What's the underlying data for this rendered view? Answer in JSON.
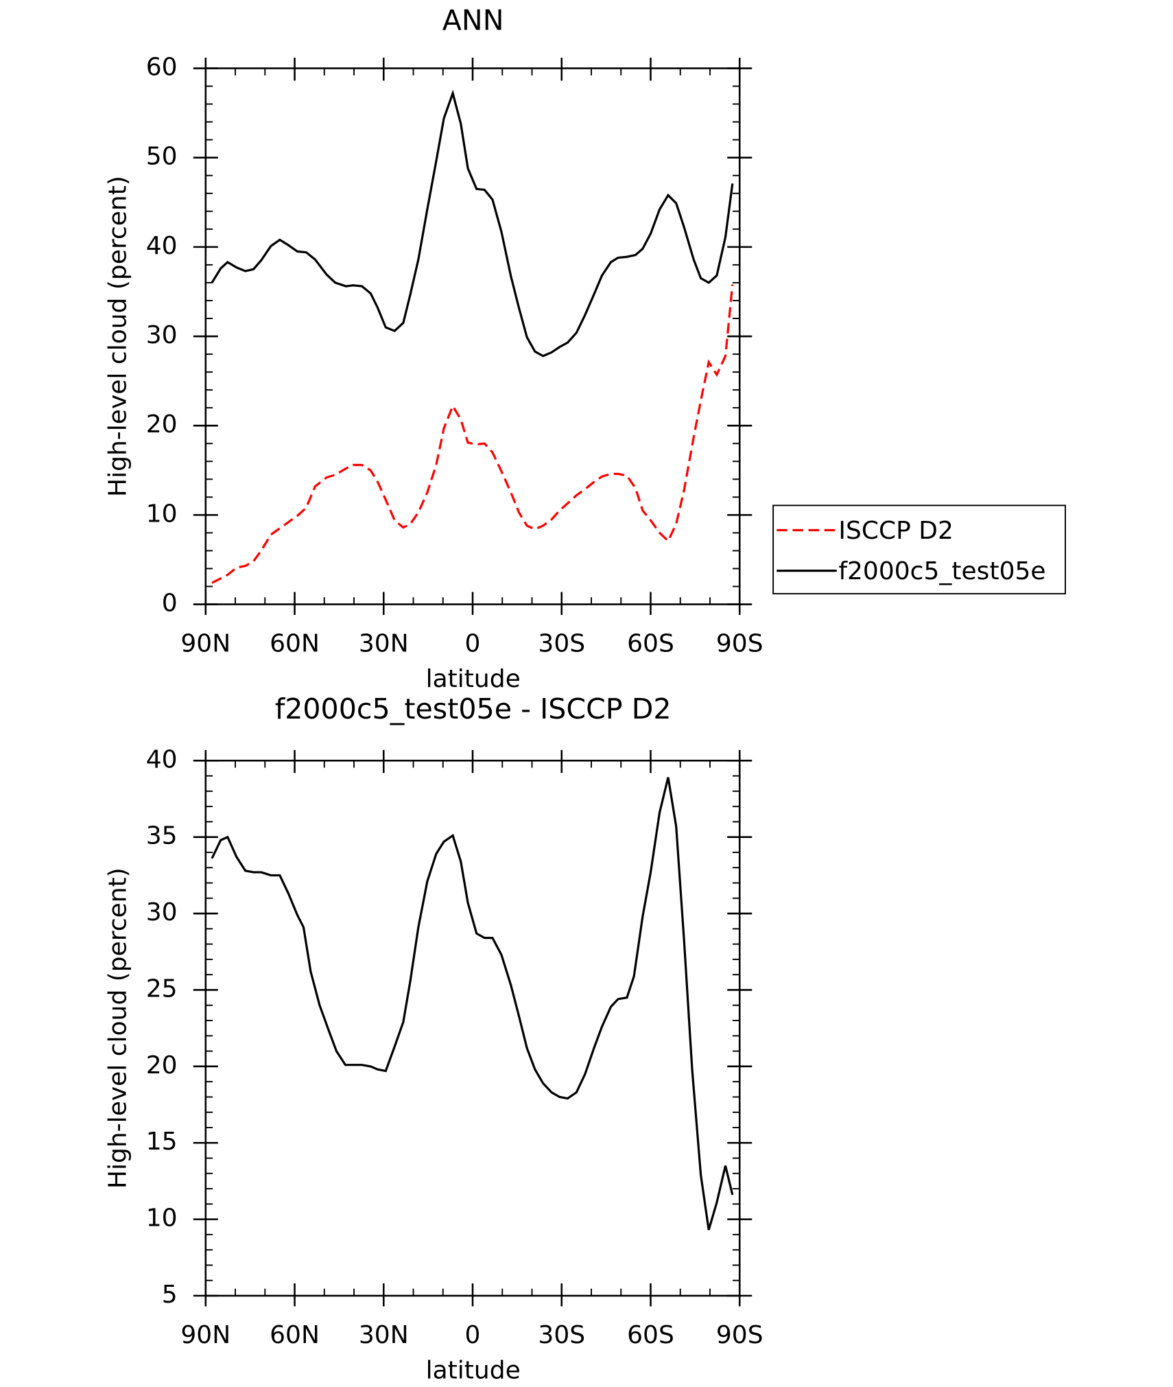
{
  "chart_data": [
    {
      "type": "line",
      "title": "ANN",
      "xlabel": "latitude",
      "ylabel": "High-level cloud (percent)",
      "x": [
        87.9,
        84.9,
        82.6,
        79.6,
        76.6,
        73.9,
        71.3,
        68.0,
        65.0,
        62.1,
        59.1,
        56.1,
        53.1,
        49.2,
        46.3,
        42.7,
        40.3,
        37.3,
        34.4,
        32.0,
        29.3,
        26.3,
        23.4,
        21.0,
        18.3,
        15.3,
        12.3,
        9.7,
        6.7,
        4.0,
        1.6,
        -1.3,
        -4.0,
        -6.7,
        -9.7,
        -12.9,
        -15.6,
        -18.3,
        -21.0,
        -23.7,
        -26.6,
        -29.3,
        -32.0,
        -35.0,
        -37.9,
        -40.9,
        -43.6,
        -46.6,
        -49.0,
        -52.0,
        -54.9,
        -57.3,
        -60.0,
        -63.0,
        -65.9,
        -68.6,
        -71.3,
        -74.5,
        -76.9,
        -79.6,
        -82.3,
        -85.2,
        -87.6
      ],
      "series": [
        {
          "name": "ISCCP D2",
          "color": "#ff0000",
          "linestyle": "dashed",
          "values": [
            2.4,
            2.9,
            3.3,
            4.1,
            4.3,
            4.8,
            6.0,
            7.8,
            8.5,
            9.2,
            9.9,
            10.8,
            13.2,
            14.2,
            14.5,
            15.2,
            15.6,
            15.6,
            15.0,
            13.7,
            11.7,
            9.4,
            8.6,
            9.0,
            10.3,
            12.5,
            15.6,
            19.7,
            22.2,
            20.7,
            18.1,
            17.9,
            18.0,
            17.0,
            14.9,
            12.5,
            10.3,
            8.8,
            8.4,
            8.8,
            9.5,
            10.5,
            11.3,
            12.2,
            12.9,
            13.7,
            14.3,
            14.6,
            14.6,
            14.4,
            13.0,
            10.5,
            9.4,
            8.0,
            7.1,
            9.0,
            12.8,
            18.7,
            22.8,
            27.1,
            25.7,
            27.8,
            35.8
          ]
        },
        {
          "name": "f2000c5_test05e",
          "color": "#000000",
          "linestyle": "solid",
          "values": [
            36.0,
            37.6,
            38.3,
            37.7,
            37.3,
            37.5,
            38.5,
            40.1,
            40.8,
            40.2,
            39.5,
            39.4,
            38.6,
            36.9,
            36.0,
            35.6,
            35.7,
            35.6,
            34.8,
            33.2,
            31.0,
            30.6,
            31.5,
            34.7,
            38.6,
            44.2,
            49.6,
            54.4,
            57.2,
            53.8,
            48.8,
            46.5,
            46.4,
            45.3,
            41.7,
            36.7,
            33.2,
            29.9,
            28.3,
            27.8,
            28.2,
            28.8,
            29.3,
            30.4,
            32.4,
            34.7,
            36.8,
            38.3,
            38.8,
            38.9,
            39.1,
            39.8,
            41.5,
            44.2,
            45.8,
            44.9,
            42.2,
            38.6,
            36.5,
            36.0,
            36.8,
            41.1,
            47.1
          ]
        }
      ],
      "xlim": [
        90,
        -90
      ],
      "xticks": [
        {
          "value": 90,
          "label": "90N"
        },
        {
          "value": 60,
          "label": "60N"
        },
        {
          "value": 30,
          "label": "30N"
        },
        0,
        {
          "value": -30,
          "label": "30S"
        },
        {
          "value": -60,
          "label": "60S"
        },
        {
          "value": -90,
          "label": "90S"
        }
      ],
      "ylim": [
        0,
        60
      ],
      "yticks": [
        0,
        10,
        20,
        30,
        40,
        50,
        60
      ],
      "legend": "right"
    },
    {
      "type": "line",
      "title": "f2000c5_test05e - ISCCP D2",
      "xlabel": "latitude",
      "ylabel": "High-level cloud (percent)",
      "x": [
        87.9,
        84.9,
        82.6,
        79.6,
        76.6,
        73.9,
        71.3,
        68.0,
        65.0,
        62.1,
        59.1,
        57.0,
        54.6,
        51.6,
        48.6,
        45.9,
        42.9,
        40.3,
        37.3,
        34.4,
        32.0,
        29.3,
        26.3,
        23.4,
        21.0,
        18.3,
        15.3,
        12.3,
        9.7,
        6.7,
        4.0,
        1.6,
        -1.3,
        -4.0,
        -6.7,
        -9.7,
        -12.9,
        -15.6,
        -18.3,
        -21.0,
        -23.7,
        -26.6,
        -29.3,
        -32.0,
        -35.0,
        -37.9,
        -40.9,
        -43.6,
        -46.6,
        -49.0,
        -52.0,
        -54.4,
        -57.3,
        -60.0,
        -63.0,
        -65.9,
        -68.6,
        -71.3,
        -74.0,
        -76.9,
        -79.6,
        -82.3,
        -85.2,
        -87.6
      ],
      "color": "#000000",
      "values": [
        33.6,
        34.8,
        35.0,
        33.7,
        32.8,
        32.7,
        32.7,
        32.5,
        32.5,
        31.3,
        29.9,
        29.1,
        26.2,
        24.0,
        22.4,
        21.0,
        20.1,
        20.1,
        20.1,
        20.0,
        19.8,
        19.7,
        21.3,
        22.9,
        25.6,
        29.1,
        32.1,
        33.9,
        34.7,
        35.1,
        33.4,
        30.7,
        28.7,
        28.4,
        28.4,
        27.3,
        25.3,
        23.3,
        21.2,
        19.8,
        18.9,
        18.3,
        18.0,
        17.9,
        18.3,
        19.5,
        21.2,
        22.6,
        23.9,
        24.4,
        24.5,
        25.9,
        29.8,
        32.7,
        36.6,
        38.9,
        35.7,
        28.2,
        19.8,
        12.9,
        9.3,
        11.1,
        13.5,
        11.6
      ],
      "xlim": [
        90,
        -90
      ],
      "xticks": [
        {
          "value": 90,
          "label": "90N"
        },
        {
          "value": 60,
          "label": "60N"
        },
        {
          "value": 30,
          "label": "30N"
        },
        0,
        {
          "value": -30,
          "label": "30S"
        },
        {
          "value": -60,
          "label": "60S"
        },
        {
          "value": -90,
          "label": "90S"
        }
      ],
      "ylim": [
        5,
        40
      ],
      "yticks": [
        5,
        10,
        15,
        20,
        25,
        30,
        35,
        40
      ]
    }
  ]
}
